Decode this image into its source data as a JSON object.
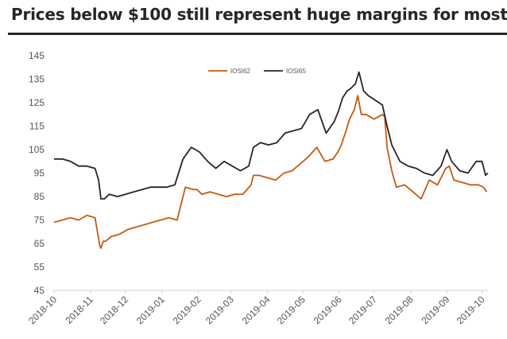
{
  "title": "Prices below $100 still represent huge margins for most...",
  "chart_data": {
    "type": "line",
    "title": "Prices below $100 still represent huge margins for most...",
    "xlabel": "",
    "ylabel": "",
    "ylim": [
      45,
      145
    ],
    "yticks": [
      45,
      55,
      65,
      75,
      85,
      95,
      105,
      115,
      125,
      135,
      145
    ],
    "xlim": [
      "2018-10-01",
      "2019-10-06"
    ],
    "xticks": [
      "2018-10",
      "2018-11",
      "2018-12",
      "2019-01",
      "2019-02",
      "2019-03",
      "2019-04",
      "2019-05",
      "2019-06",
      "2019-07",
      "2019-08",
      "2019-09",
      "2019-10"
    ],
    "grid": false,
    "legend_position": "top-center",
    "series": [
      {
        "name": "IOSI62",
        "color": "#C55A11",
        "x": [
          "2018-10-01",
          "2018-10-08",
          "2018-10-15",
          "2018-10-22",
          "2018-10-29",
          "2018-11-05",
          "2018-11-07",
          "2018-11-09",
          "2018-11-10",
          "2018-11-12",
          "2018-11-14",
          "2018-11-19",
          "2018-11-26",
          "2018-12-03",
          "2018-12-10",
          "2018-12-17",
          "2018-12-24",
          "2018-12-31",
          "2019-01-07",
          "2019-01-14",
          "2019-01-21",
          "2019-01-28",
          "2019-01-31",
          "2019-02-04",
          "2019-02-11",
          "2019-02-18",
          "2019-02-25",
          "2019-03-04",
          "2019-03-11",
          "2019-03-18",
          "2019-03-20",
          "2019-03-25",
          "2019-04-01",
          "2019-04-08",
          "2019-04-15",
          "2019-04-22",
          "2019-04-29",
          "2019-05-06",
          "2019-05-13",
          "2019-05-20",
          "2019-05-27",
          "2019-05-31",
          "2019-06-03",
          "2019-06-07",
          "2019-06-10",
          "2019-06-14",
          "2019-06-17",
          "2019-06-20",
          "2019-06-24",
          "2019-07-01",
          "2019-07-08",
          "2019-07-10",
          "2019-07-12",
          "2019-07-16",
          "2019-07-20",
          "2019-07-27",
          "2019-08-03",
          "2019-08-10",
          "2019-08-17",
          "2019-08-24",
          "2019-08-31",
          "2019-09-03",
          "2019-09-07",
          "2019-09-14",
          "2019-09-21",
          "2019-09-28",
          "2019-10-02",
          "2019-10-05"
        ],
        "values": [
          74,
          75,
          76,
          75,
          77,
          76,
          70,
          64,
          63,
          66,
          66,
          68,
          69,
          71,
          72,
          73,
          74,
          75,
          76,
          75,
          89,
          88,
          88,
          86,
          87,
          86,
          85,
          86,
          86,
          90,
          94,
          94,
          93,
          92,
          95,
          96,
          99,
          102,
          106,
          100,
          101,
          104,
          107,
          113,
          118,
          122,
          128,
          120,
          120,
          118,
          120,
          119,
          106,
          96,
          89,
          90,
          87,
          84,
          92,
          90,
          97,
          98,
          92,
          91,
          90,
          90,
          89,
          87
        ]
      },
      {
        "name": "IOSI65",
        "color": "#262626",
        "x": [
          "2018-10-01",
          "2018-10-08",
          "2018-10-15",
          "2018-10-22",
          "2018-10-29",
          "2018-11-05",
          "2018-11-08",
          "2018-11-10",
          "2018-11-13",
          "2018-11-17",
          "2018-11-24",
          "2018-12-01",
          "2018-12-08",
          "2018-12-15",
          "2018-12-22",
          "2018-12-29",
          "2019-01-05",
          "2019-01-12",
          "2019-01-19",
          "2019-01-26",
          "2019-02-02",
          "2019-02-09",
          "2019-02-16",
          "2019-02-23",
          "2019-03-02",
          "2019-03-09",
          "2019-03-16",
          "2019-03-20",
          "2019-03-26",
          "2019-04-02",
          "2019-04-09",
          "2019-04-16",
          "2019-04-23",
          "2019-04-30",
          "2019-05-07",
          "2019-05-14",
          "2019-05-21",
          "2019-05-28",
          "2019-06-01",
          "2019-06-04",
          "2019-06-08",
          "2019-06-11",
          "2019-06-15",
          "2019-06-18",
          "2019-06-22",
          "2019-06-26",
          "2019-07-02",
          "2019-07-08",
          "2019-07-12",
          "2019-07-16",
          "2019-07-23",
          "2019-07-30",
          "2019-08-06",
          "2019-08-13",
          "2019-08-20",
          "2019-08-27",
          "2019-09-01",
          "2019-09-05",
          "2019-09-12",
          "2019-09-19",
          "2019-09-26",
          "2019-10-01",
          "2019-10-04",
          "2019-10-06"
        ],
        "values": [
          101,
          101,
          100,
          98,
          98,
          97,
          92,
          84,
          84,
          86,
          85,
          86,
          87,
          88,
          89,
          89,
          89,
          90,
          101,
          106,
          104,
          100,
          97,
          100,
          98,
          96,
          98,
          106,
          108,
          107,
          108,
          112,
          113,
          114,
          120,
          122,
          112,
          117,
          122,
          127,
          130,
          131,
          133,
          138,
          130,
          128,
          126,
          124,
          115,
          107,
          100,
          98,
          97,
          95,
          94,
          98,
          105,
          100,
          96,
          95,
          100,
          100,
          94,
          95
        ]
      }
    ]
  }
}
